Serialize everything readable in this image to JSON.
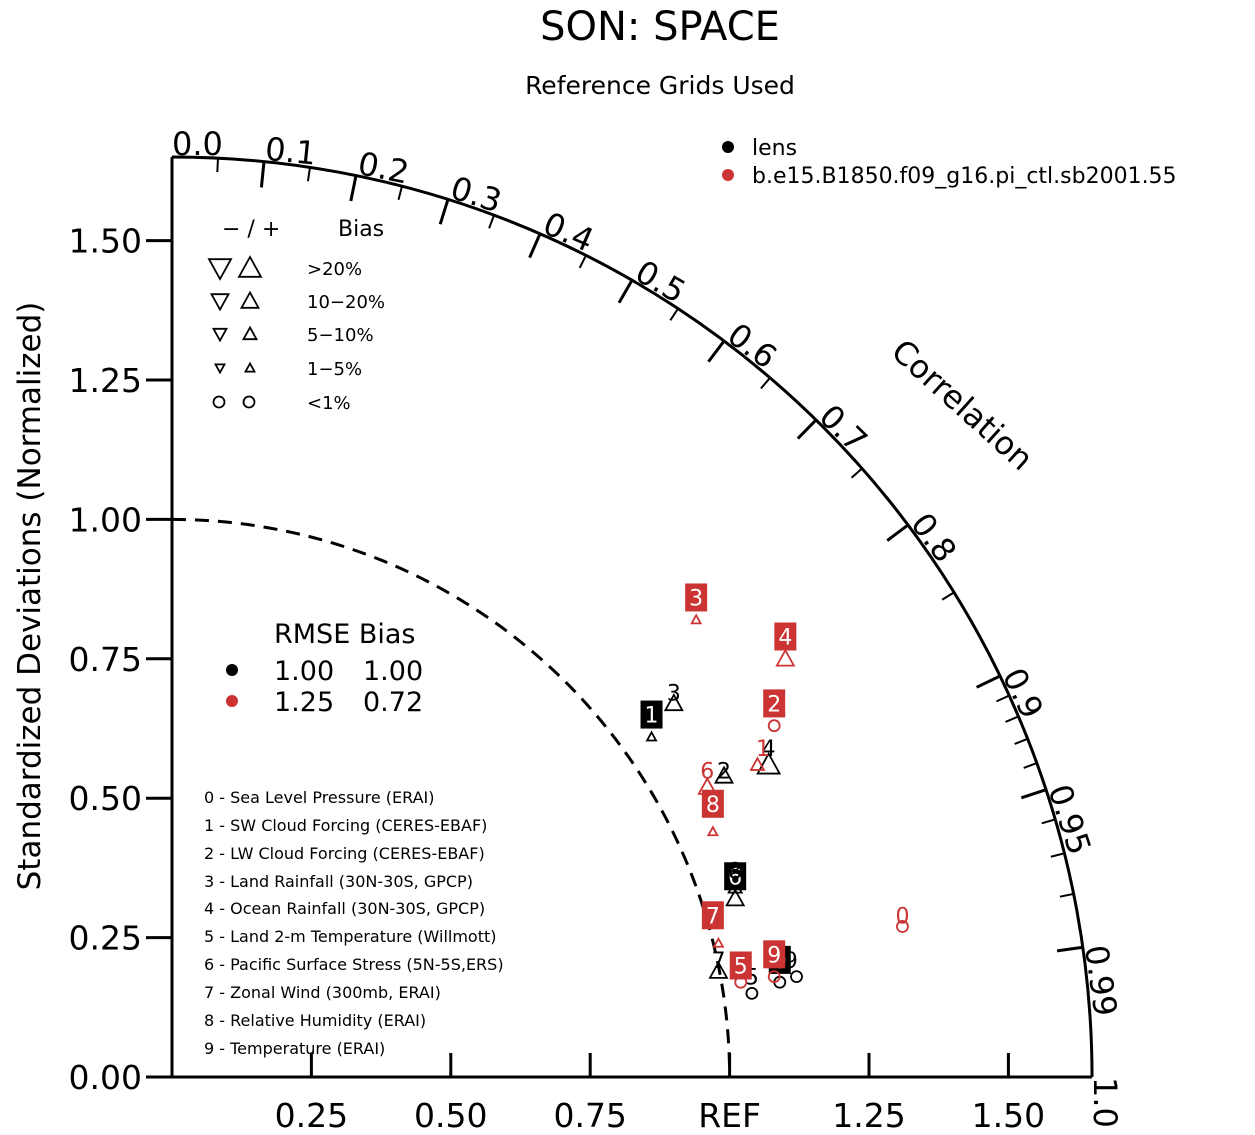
{
  "title": "SON: SPACE",
  "subtitle": "Reference Grids Used",
  "y_axis_label": "Standardized Deviations (Normalized)",
  "correlation_label": "Correlation",
  "colors": {
    "lens": "#000000",
    "pi_ctl": "#cc3333"
  },
  "bias_legend": {
    "header_signs": "− / +",
    "header_bias": "Bias",
    "rows": [
      {
        "label": ">20%",
        "shape": "triangle-large"
      },
      {
        "label": "10−20%",
        "shape": "triangle-medium"
      },
      {
        "label": "5−10%",
        "shape": "triangle-small"
      },
      {
        "label": "1−5%",
        "shape": "triangle-tiny"
      },
      {
        "label": "<1%",
        "shape": "circle"
      }
    ]
  },
  "case_legend": [
    {
      "name": "lens",
      "color": "#000000"
    },
    {
      "name": "b.e15.B1850.f09_g16.pi_ctl.sb2001.55",
      "color": "#cc3333"
    }
  ],
  "stats_table": {
    "header": "RMSE Bias",
    "rows": [
      {
        "color": "#000000",
        "rmse": "1.00",
        "bias": "1.00"
      },
      {
        "color": "#cc3333",
        "rmse": "1.25",
        "bias": "0.72"
      }
    ]
  },
  "variables": [
    "0 - Sea Level Pressure (ERAI)",
    "1 - SW Cloud Forcing (CERES-EBAF)",
    "2 - LW Cloud Forcing (CERES-EBAF)",
    "3 - Land Rainfall (30N-30S, GPCP)",
    "4 - Ocean Rainfall (30N-30S, GPCP)",
    "5 - Land 2-m Temperature (Willmott)",
    "6 - Pacific Surface Stress (5N-5S,ERS)",
    "7 - Zonal Wind (300mb, ERAI)",
    "8 - Relative Humidity (ERAI)",
    "9 - Temperature (ERAI)"
  ],
  "chart_data": {
    "type": "scatter",
    "title": "SON: SPACE",
    "subtitle": "Reference Grids Used",
    "ylabel": "Standardized Deviations (Normalized)",
    "xlim": [
      0,
      1.65
    ],
    "ylim": [
      0,
      1.65
    ],
    "x_ticks": [
      "0.25",
      "0.50",
      "0.75",
      "REF",
      "1.25",
      "1.50"
    ],
    "x_tick_values": [
      0.25,
      0.5,
      0.75,
      1.0,
      1.25,
      1.5
    ],
    "y_ticks": [
      "0.00",
      "0.25",
      "0.50",
      "0.75",
      "1.00",
      "1.25",
      "1.50"
    ],
    "y_tick_values": [
      0,
      0.25,
      0.5,
      0.75,
      1.0,
      1.25,
      1.5
    ],
    "correlation_ticks": [
      "0.0",
      "0.1",
      "0.2",
      "0.3",
      "0.4",
      "0.5",
      "0.6",
      "0.7",
      "0.8",
      "0.9",
      "0.95",
      "0.99",
      "1.0"
    ],
    "correlation_tick_values": [
      0.0,
      0.1,
      0.2,
      0.3,
      0.4,
      0.5,
      0.6,
      0.7,
      0.8,
      0.9,
      0.95,
      0.99,
      1.0
    ],
    "reference_arc_radius": 1.0,
    "series": [
      {
        "name": "lens",
        "color": "#000000",
        "points": [
          {
            "var": "0",
            "x": 1.09,
            "y": 0.21,
            "label_style": "box"
          },
          {
            "var": "1",
            "x": 0.86,
            "y": 0.65,
            "label_style": "box"
          },
          {
            "var": "2",
            "x": 0.99,
            "y": 0.55,
            "label_style": "plain"
          },
          {
            "var": "3",
            "x": 0.9,
            "y": 0.69,
            "label_style": "plain"
          },
          {
            "var": "4",
            "x": 1.07,
            "y": 0.59,
            "label_style": "plain"
          },
          {
            "var": "5",
            "x": 1.04,
            "y": 0.18,
            "label_style": "plain"
          },
          {
            "var": "6",
            "x": 1.01,
            "y": 0.36,
            "label_style": "box"
          },
          {
            "var": "7",
            "x": 0.98,
            "y": 0.21,
            "label_style": "plain"
          },
          {
            "var": "8",
            "x": 1.01,
            "y": 0.37,
            "label_style": "plain"
          },
          {
            "var": "9",
            "x": 1.11,
            "y": 0.21,
            "label_style": "plain"
          }
        ],
        "bias_markers": [
          {
            "var": "0",
            "x": 1.09,
            "y": 0.17,
            "shape": "circle"
          },
          {
            "var": "1",
            "x": 0.86,
            "y": 0.61,
            "shape": "triangle-up-tiny"
          },
          {
            "var": "2",
            "x": 0.99,
            "y": 0.54,
            "shape": "triangle-up-medium"
          },
          {
            "var": "3",
            "x": 0.9,
            "y": 0.67,
            "shape": "triangle-up-medium"
          },
          {
            "var": "4",
            "x": 1.07,
            "y": 0.56,
            "shape": "triangle-up-large"
          },
          {
            "var": "5",
            "x": 1.04,
            "y": 0.15,
            "shape": "circle"
          },
          {
            "var": "6",
            "x": 1.01,
            "y": 0.32,
            "shape": "triangle-up-medium"
          },
          {
            "var": "7",
            "x": 0.98,
            "y": 0.19,
            "shape": "triangle-up-medium"
          },
          {
            "var": "8",
            "x": 1.01,
            "y": 0.34,
            "shape": "triangle-up-small"
          },
          {
            "var": "9",
            "x": 1.12,
            "y": 0.18,
            "shape": "circle"
          }
        ]
      },
      {
        "name": "b.e15.B1850.f09_g16.pi_ctl.sb2001.55",
        "color": "#cc3333",
        "points": [
          {
            "var": "0",
            "x": 1.31,
            "y": 0.29,
            "label_style": "plain"
          },
          {
            "var": "1",
            "x": 1.06,
            "y": 0.59,
            "label_style": "plain"
          },
          {
            "var": "2",
            "x": 1.08,
            "y": 0.67,
            "label_style": "box"
          },
          {
            "var": "3",
            "x": 0.94,
            "y": 0.86,
            "label_style": "box"
          },
          {
            "var": "4",
            "x": 1.1,
            "y": 0.79,
            "label_style": "box"
          },
          {
            "var": "5",
            "x": 1.02,
            "y": 0.2,
            "label_style": "box"
          },
          {
            "var": "6",
            "x": 0.96,
            "y": 0.55,
            "label_style": "plain"
          },
          {
            "var": "7",
            "x": 0.97,
            "y": 0.29,
            "label_style": "box"
          },
          {
            "var": "8",
            "x": 0.97,
            "y": 0.49,
            "label_style": "box"
          },
          {
            "var": "9",
            "x": 1.08,
            "y": 0.22,
            "label_style": "box"
          }
        ],
        "bias_markers": [
          {
            "var": "0",
            "x": 1.31,
            "y": 0.27,
            "shape": "circle"
          },
          {
            "var": "1",
            "x": 1.05,
            "y": 0.56,
            "shape": "triangle-up-small"
          },
          {
            "var": "2",
            "x": 1.08,
            "y": 0.63,
            "shape": "circle"
          },
          {
            "var": "3",
            "x": 0.94,
            "y": 0.82,
            "shape": "triangle-up-tiny"
          },
          {
            "var": "4",
            "x": 1.1,
            "y": 0.75,
            "shape": "triangle-up-medium"
          },
          {
            "var": "5",
            "x": 1.02,
            "y": 0.17,
            "shape": "circle"
          },
          {
            "var": "6",
            "x": 0.96,
            "y": 0.52,
            "shape": "triangle-up-medium"
          },
          {
            "var": "7",
            "x": 0.98,
            "y": 0.24,
            "shape": "triangle-up-tiny"
          },
          {
            "var": "8",
            "x": 0.97,
            "y": 0.44,
            "shape": "triangle-up-tiny"
          },
          {
            "var": "9",
            "x": 1.08,
            "y": 0.18,
            "shape": "circle"
          }
        ]
      }
    ]
  }
}
